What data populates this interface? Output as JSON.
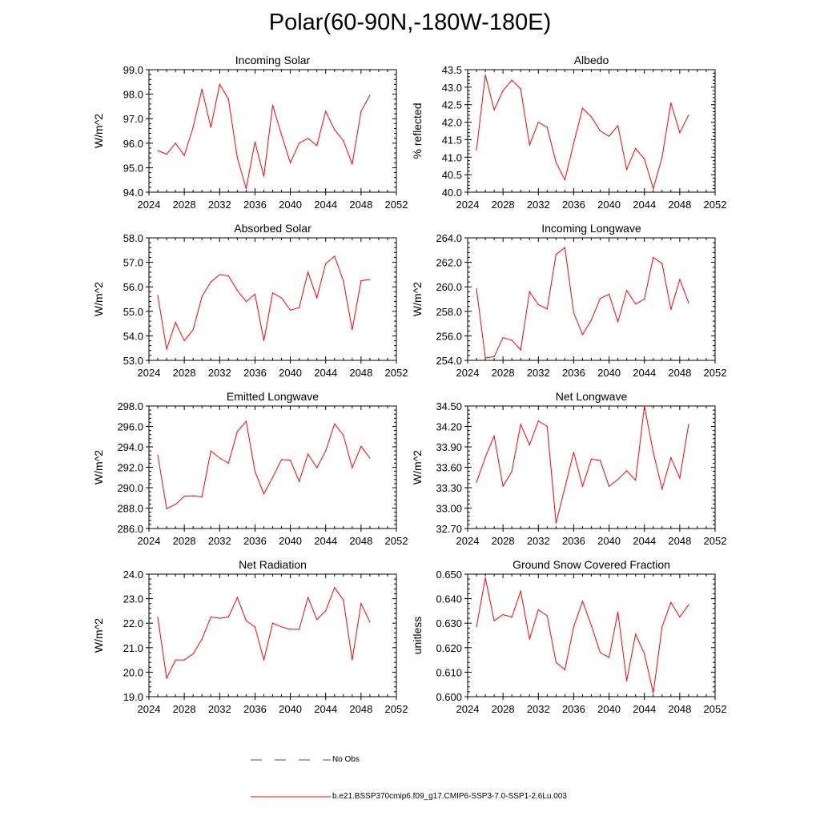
{
  "figure": {
    "title": "Polar(60-90N,-180W-180E)"
  },
  "legend": {
    "entries": [
      {
        "label": "No Obs",
        "color": "#3a4fb0",
        "style": "dashed"
      },
      {
        "label": "b.e21.BSSP370cmip6.f09_g17.CMIP6-SSP3-7.0-SSP1-2.6Lu.003",
        "color": "#ff0000",
        "style": "solid"
      }
    ]
  },
  "chart_data": [
    {
      "type": "line",
      "title": "Incoming Solar",
      "ylabel": "W/m^2",
      "xlim": [
        2024,
        2052
      ],
      "ylim": [
        94.0,
        99.0
      ],
      "xticks": [
        2024,
        2028,
        2032,
        2036,
        2040,
        2044,
        2048,
        2052
      ],
      "xtick_labels": [
        "2024",
        "2028",
        "2032",
        "2036",
        "2040",
        "2044",
        "2048",
        "2052"
      ],
      "yticks": [
        94.0,
        95.0,
        96.0,
        97.0,
        98.0,
        99.0
      ],
      "ytick_labels": [
        "94.0",
        "95.0",
        "96.0",
        "97.0",
        "98.0",
        "99.0"
      ],
      "series": [
        {
          "color": "#ff0000",
          "x": [
            2025,
            2026,
            2027,
            2028,
            2029,
            2030,
            2031,
            2032,
            2033,
            2034,
            2035,
            2036,
            2037,
            2038,
            2039,
            2040,
            2041,
            2042,
            2043,
            2044,
            2045,
            2046,
            2047,
            2048,
            2049
          ],
          "y": [
            95.7,
            95.55,
            96.0,
            95.5,
            96.65,
            98.2,
            96.65,
            98.4,
            97.8,
            95.4,
            94.15,
            96.05,
            94.65,
            97.55,
            96.35,
            95.2,
            96.0,
            96.2,
            95.9,
            97.3,
            96.55,
            96.1,
            95.15,
            97.3,
            97.95
          ]
        }
      ]
    },
    {
      "type": "line",
      "title": "Albedo",
      "ylabel": "% reflected",
      "xlim": [
        2024,
        2052
      ],
      "ylim": [
        40.0,
        43.5
      ],
      "xticks": [
        2024,
        2028,
        2032,
        2036,
        2040,
        2044,
        2048,
        2052
      ],
      "xtick_labels": [
        "2024",
        "2028",
        "2032",
        "2036",
        "2040",
        "2044",
        "2048",
        "2052"
      ],
      "yticks": [
        40.0,
        40.5,
        41.0,
        41.5,
        42.0,
        42.5,
        43.0,
        43.5
      ],
      "ytick_labels": [
        "40.0",
        "40.5",
        "41.0",
        "41.5",
        "42.0",
        "42.5",
        "43.0",
        "43.5"
      ],
      "series": [
        {
          "color": "#ff0000",
          "x": [
            2025,
            2026,
            2027,
            2028,
            2029,
            2030,
            2031,
            2032,
            2033,
            2034,
            2035,
            2036,
            2037,
            2038,
            2039,
            2040,
            2041,
            2042,
            2043,
            2044,
            2045,
            2046,
            2047,
            2048,
            2049
          ],
          "y": [
            41.2,
            43.35,
            42.35,
            42.9,
            43.2,
            42.95,
            41.35,
            42.0,
            41.85,
            40.85,
            40.35,
            41.4,
            42.4,
            42.15,
            41.75,
            41.6,
            41.9,
            40.65,
            41.25,
            40.95,
            40.1,
            41.0,
            42.55,
            41.7,
            42.2
          ]
        }
      ]
    },
    {
      "type": "line",
      "title": "Absorbed Solar",
      "ylabel": "W/m^2",
      "xlim": [
        2024,
        2052
      ],
      "ylim": [
        53.0,
        58.0
      ],
      "xticks": [
        2024,
        2028,
        2032,
        2036,
        2040,
        2044,
        2048,
        2052
      ],
      "xtick_labels": [
        "2024",
        "2028",
        "2032",
        "2036",
        "2040",
        "2044",
        "2048",
        "2052"
      ],
      "yticks": [
        53.0,
        54.0,
        55.0,
        56.0,
        57.0,
        58.0
      ],
      "ytick_labels": [
        "53.0",
        "54.0",
        "55.0",
        "56.0",
        "57.0",
        "58.0"
      ],
      "series": [
        {
          "color": "#ff0000",
          "x": [
            2025,
            2026,
            2027,
            2028,
            2029,
            2030,
            2031,
            2032,
            2033,
            2034,
            2035,
            2036,
            2037,
            2038,
            2039,
            2040,
            2041,
            2042,
            2043,
            2044,
            2045,
            2046,
            2047,
            2048,
            2049
          ],
          "y": [
            55.65,
            53.45,
            54.55,
            53.8,
            54.25,
            55.6,
            56.2,
            56.5,
            56.45,
            55.85,
            55.4,
            55.7,
            53.8,
            55.75,
            55.55,
            55.05,
            55.15,
            56.6,
            55.55,
            56.95,
            57.25,
            56.25,
            54.25,
            56.25,
            56.3
          ]
        }
      ]
    },
    {
      "type": "line",
      "title": "Incoming Longwave",
      "ylabel": "W/m^2",
      "xlim": [
        2024,
        2052
      ],
      "ylim": [
        254.0,
        264.0
      ],
      "xticks": [
        2024,
        2028,
        2032,
        2036,
        2040,
        2044,
        2048,
        2052
      ],
      "xtick_labels": [
        "2024",
        "2028",
        "2032",
        "2036",
        "2040",
        "2044",
        "2048",
        "2052"
      ],
      "yticks": [
        254.0,
        256.0,
        258.0,
        260.0,
        262.0,
        264.0
      ],
      "ytick_labels": [
        "254.0",
        "256.0",
        "258.0",
        "260.0",
        "262.0",
        "264.0"
      ],
      "series": [
        {
          "color": "#ff0000",
          "x": [
            2025,
            2026,
            2027,
            2028,
            2029,
            2030,
            2031,
            2032,
            2033,
            2034,
            2035,
            2036,
            2037,
            2038,
            2039,
            2040,
            2041,
            2042,
            2043,
            2044,
            2045,
            2046,
            2047,
            2048,
            2049
          ],
          "y": [
            259.85,
            254.2,
            254.3,
            255.85,
            255.65,
            254.85,
            259.6,
            258.55,
            258.2,
            262.65,
            263.2,
            257.9,
            256.1,
            257.3,
            259.05,
            259.4,
            257.15,
            259.7,
            258.6,
            259.0,
            262.4,
            261.9,
            258.15,
            260.6,
            258.7
          ]
        }
      ]
    },
    {
      "type": "line",
      "title": "Emitted Longwave",
      "ylabel": "W/m^2",
      "xlim": [
        2024,
        2052
      ],
      "ylim": [
        286.0,
        298.0
      ],
      "xticks": [
        2024,
        2028,
        2032,
        2036,
        2040,
        2044,
        2048,
        2052
      ],
      "xtick_labels": [
        "2024",
        "2028",
        "2032",
        "2036",
        "2040",
        "2044",
        "2048",
        "2052"
      ],
      "yticks": [
        286.0,
        288.0,
        290.0,
        292.0,
        294.0,
        296.0,
        298.0
      ],
      "ytick_labels": [
        "286.0",
        "288.0",
        "290.0",
        "292.0",
        "294.0",
        "296.0",
        "298.0"
      ],
      "series": [
        {
          "color": "#ff0000",
          "x": [
            2025,
            2026,
            2027,
            2028,
            2029,
            2030,
            2031,
            2032,
            2033,
            2034,
            2035,
            2036,
            2037,
            2038,
            2039,
            2040,
            2041,
            2042,
            2043,
            2044,
            2045,
            2046,
            2047,
            2048,
            2049
          ],
          "y": [
            293.2,
            287.95,
            288.35,
            289.15,
            289.2,
            289.1,
            293.6,
            292.9,
            292.4,
            295.5,
            296.5,
            291.6,
            289.4,
            291.0,
            292.75,
            292.7,
            290.6,
            293.3,
            291.95,
            293.6,
            296.25,
            295.15,
            291.95,
            294.05,
            292.9
          ]
        }
      ]
    },
    {
      "type": "line",
      "title": "Net Longwave",
      "ylabel": "W/m^2",
      "xlim": [
        2024,
        2052
      ],
      "ylim": [
        32.7,
        34.5
      ],
      "xticks": [
        2024,
        2028,
        2032,
        2036,
        2040,
        2044,
        2048,
        2052
      ],
      "xtick_labels": [
        "2024",
        "2028",
        "2032",
        "2036",
        "2040",
        "2044",
        "2048",
        "2052"
      ],
      "yticks": [
        32.7,
        33.0,
        33.3,
        33.6,
        33.9,
        34.2,
        34.5
      ],
      "ytick_labels": [
        "32.70",
        "33.00",
        "33.30",
        "33.60",
        "33.90",
        "34.20",
        "34.50"
      ],
      "series": [
        {
          "color": "#ff0000",
          "x": [
            2025,
            2026,
            2027,
            2028,
            2029,
            2030,
            2031,
            2032,
            2033,
            2034,
            2035,
            2036,
            2037,
            2038,
            2039,
            2040,
            2041,
            2042,
            2043,
            2044,
            2045,
            2046,
            2047,
            2048,
            2049
          ],
          "y": [
            33.38,
            33.75,
            34.06,
            33.32,
            33.54,
            34.23,
            33.93,
            34.28,
            34.2,
            32.78,
            33.3,
            33.82,
            33.32,
            33.72,
            33.7,
            33.32,
            33.42,
            33.55,
            33.41,
            34.5,
            33.82,
            33.28,
            33.74,
            33.44,
            34.23
          ]
        }
      ]
    },
    {
      "type": "line",
      "title": "Net Radiation",
      "ylabel": "W/m^2",
      "xlim": [
        2024,
        2052
      ],
      "ylim": [
        19.0,
        24.0
      ],
      "xticks": [
        2024,
        2028,
        2032,
        2036,
        2040,
        2044,
        2048,
        2052
      ],
      "xtick_labels": [
        "2024",
        "2028",
        "2032",
        "2036",
        "2040",
        "2044",
        "2048",
        "2052"
      ],
      "yticks": [
        19.0,
        20.0,
        21.0,
        22.0,
        23.0,
        24.0
      ],
      "ytick_labels": [
        "19.0",
        "20.0",
        "21.0",
        "22.0",
        "23.0",
        "24.0"
      ],
      "series": [
        {
          "color": "#ff0000",
          "x": [
            2025,
            2026,
            2027,
            2028,
            2029,
            2030,
            2031,
            2032,
            2033,
            2034,
            2035,
            2036,
            2037,
            2038,
            2039,
            2040,
            2041,
            2042,
            2043,
            2044,
            2045,
            2046,
            2047,
            2048,
            2049
          ],
          "y": [
            22.25,
            19.75,
            20.5,
            20.5,
            20.75,
            21.35,
            22.25,
            22.2,
            22.25,
            23.05,
            22.1,
            21.85,
            20.5,
            22.0,
            21.85,
            21.75,
            21.75,
            23.05,
            22.15,
            22.5,
            23.45,
            22.95,
            20.5,
            22.8,
            22.05
          ]
        }
      ]
    },
    {
      "type": "line",
      "title": "Ground Snow Covered Fraction",
      "ylabel": "unitless",
      "xlim": [
        2024,
        2052
      ],
      "ylim": [
        0.6,
        0.65
      ],
      "xticks": [
        2024,
        2028,
        2032,
        2036,
        2040,
        2044,
        2048,
        2052
      ],
      "xtick_labels": [
        "2024",
        "2028",
        "2032",
        "2036",
        "2040",
        "2044",
        "2048",
        "2052"
      ],
      "yticks": [
        0.6,
        0.61,
        0.62,
        0.63,
        0.64,
        0.65
      ],
      "ytick_labels": [
        "0.600",
        "0.610",
        "0.620",
        "0.630",
        "0.640",
        "0.650"
      ],
      "series": [
        {
          "color": "#ff0000",
          "x": [
            2025,
            2026,
            2027,
            2028,
            2029,
            2030,
            2031,
            2032,
            2033,
            2034,
            2035,
            2036,
            2037,
            2038,
            2039,
            2040,
            2041,
            2042,
            2043,
            2044,
            2045,
            2046,
            2047,
            2048,
            2049
          ],
          "y": [
            0.6285,
            0.6485,
            0.631,
            0.6335,
            0.6325,
            0.643,
            0.6235,
            0.6355,
            0.633,
            0.614,
            0.611,
            0.6285,
            0.639,
            0.629,
            0.618,
            0.616,
            0.6345,
            0.6065,
            0.6255,
            0.6175,
            0.6015,
            0.6285,
            0.6385,
            0.6325,
            0.6375
          ]
        }
      ]
    }
  ]
}
